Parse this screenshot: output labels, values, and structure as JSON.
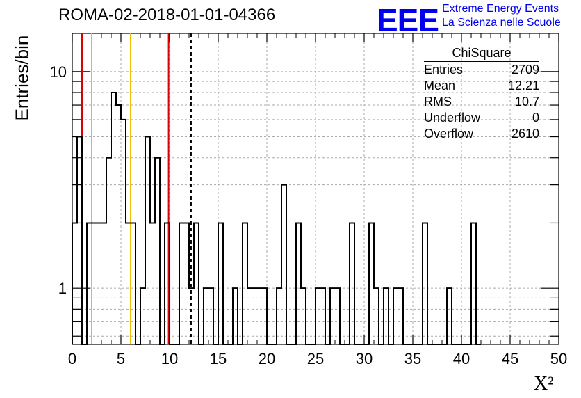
{
  "header": {
    "run_title": "ROMA-02-2018-01-01-04366",
    "logo_text": "EEE",
    "logo_line1": "Extreme Energy Events",
    "logo_line2": "La Scienza nelle Scuole"
  },
  "stats_box": {
    "title": "ChiSquare",
    "rows": [
      {
        "label": "Entries",
        "value": "2709"
      },
      {
        "label": "Mean",
        "value": "12.21"
      },
      {
        "label": "RMS",
        "value": "10.7"
      },
      {
        "label": "Underflow",
        "value": "0"
      },
      {
        "label": "Overflow",
        "value": "2610"
      }
    ]
  },
  "chart_data": {
    "type": "histogram",
    "title": "ROMA-02-2018-01-01-04366",
    "xlabel": "X²",
    "ylabel": "Entries/bin",
    "xlim": [
      0,
      50
    ],
    "ylim": [
      0.55,
      15
    ],
    "yscale": "log",
    "grid": true,
    "bin_width": 0.5,
    "x_ticks": [
      "0",
      "5",
      "10",
      "15",
      "20",
      "25",
      "30",
      "35",
      "40",
      "45",
      "50"
    ],
    "y_ticks": [
      "1",
      "10"
    ],
    "bins": [
      {
        "x": 0.0,
        "y": 2
      },
      {
        "x": 0.5,
        "y": 5
      },
      {
        "x": 1.0,
        "y": 0
      },
      {
        "x": 1.5,
        "y": 2
      },
      {
        "x": 2.0,
        "y": 2
      },
      {
        "x": 2.5,
        "y": 2
      },
      {
        "x": 3.0,
        "y": 2
      },
      {
        "x": 3.5,
        "y": 4
      },
      {
        "x": 4.0,
        "y": 8
      },
      {
        "x": 4.5,
        "y": 7
      },
      {
        "x": 5.0,
        "y": 6
      },
      {
        "x": 5.5,
        "y": 2
      },
      {
        "x": 6.0,
        "y": 2
      },
      {
        "x": 6.5,
        "y": 0
      },
      {
        "x": 7.0,
        "y": 1
      },
      {
        "x": 7.5,
        "y": 5
      },
      {
        "x": 8.0,
        "y": 2
      },
      {
        "x": 8.5,
        "y": 4
      },
      {
        "x": 9.0,
        "y": 0
      },
      {
        "x": 9.5,
        "y": 2
      },
      {
        "x": 10.0,
        "y": 0
      },
      {
        "x": 10.5,
        "y": 0
      },
      {
        "x": 11.0,
        "y": 2
      },
      {
        "x": 11.5,
        "y": 2
      },
      {
        "x": 12.0,
        "y": 1
      },
      {
        "x": 12.5,
        "y": 2
      },
      {
        "x": 13.0,
        "y": 0
      },
      {
        "x": 13.5,
        "y": 1
      },
      {
        "x": 14.0,
        "y": 1
      },
      {
        "x": 14.5,
        "y": 0
      },
      {
        "x": 15.0,
        "y": 2
      },
      {
        "x": 15.5,
        "y": 0
      },
      {
        "x": 16.0,
        "y": 0
      },
      {
        "x": 16.5,
        "y": 1
      },
      {
        "x": 17.0,
        "y": 0
      },
      {
        "x": 17.5,
        "y": 2
      },
      {
        "x": 18.0,
        "y": 1
      },
      {
        "x": 18.5,
        "y": 1
      },
      {
        "x": 19.0,
        "y": 1
      },
      {
        "x": 19.5,
        "y": 1
      },
      {
        "x": 20.0,
        "y": 0
      },
      {
        "x": 20.5,
        "y": 0
      },
      {
        "x": 21.0,
        "y": 1
      },
      {
        "x": 21.5,
        "y": 3
      },
      {
        "x": 22.0,
        "y": 0
      },
      {
        "x": 22.5,
        "y": 0
      },
      {
        "x": 23.0,
        "y": 2
      },
      {
        "x": 23.5,
        "y": 1
      },
      {
        "x": 24.0,
        "y": 0
      },
      {
        "x": 24.5,
        "y": 0
      },
      {
        "x": 25.0,
        "y": 1
      },
      {
        "x": 25.5,
        "y": 1
      },
      {
        "x": 26.0,
        "y": 0
      },
      {
        "x": 26.5,
        "y": 1
      },
      {
        "x": 27.0,
        "y": 1
      },
      {
        "x": 27.5,
        "y": 0
      },
      {
        "x": 28.0,
        "y": 0
      },
      {
        "x": 28.5,
        "y": 2
      },
      {
        "x": 29.0,
        "y": 0
      },
      {
        "x": 29.5,
        "y": 0
      },
      {
        "x": 30.0,
        "y": 0
      },
      {
        "x": 30.5,
        "y": 2
      },
      {
        "x": 31.0,
        "y": 1
      },
      {
        "x": 31.5,
        "y": 0
      },
      {
        "x": 32.0,
        "y": 1
      },
      {
        "x": 32.5,
        "y": 0
      },
      {
        "x": 33.0,
        "y": 1
      },
      {
        "x": 33.5,
        "y": 1
      },
      {
        "x": 34.0,
        "y": 0
      },
      {
        "x": 34.5,
        "y": 0
      },
      {
        "x": 35.0,
        "y": 0
      },
      {
        "x": 35.5,
        "y": 0
      },
      {
        "x": 36.0,
        "y": 2
      },
      {
        "x": 36.5,
        "y": 0
      },
      {
        "x": 37.0,
        "y": 0
      },
      {
        "x": 37.5,
        "y": 0
      },
      {
        "x": 38.0,
        "y": 0
      },
      {
        "x": 38.5,
        "y": 1
      },
      {
        "x": 39.0,
        "y": 0
      },
      {
        "x": 39.5,
        "y": 0
      },
      {
        "x": 40.0,
        "y": 0
      },
      {
        "x": 40.5,
        "y": 0
      },
      {
        "x": 41.0,
        "y": 2
      },
      {
        "x": 41.5,
        "y": 0
      }
    ],
    "reference_lines": [
      {
        "x": 1.0,
        "color": "#dd0000",
        "style": "solid"
      },
      {
        "x": 2.0,
        "color": "#f0c000",
        "style": "solid"
      },
      {
        "x": 6.0,
        "color": "#f0c000",
        "style": "solid"
      },
      {
        "x": 9.9,
        "color": "#dd0000",
        "style": "solid"
      },
      {
        "x": 12.21,
        "color": "#000000",
        "style": "dashed"
      }
    ]
  }
}
